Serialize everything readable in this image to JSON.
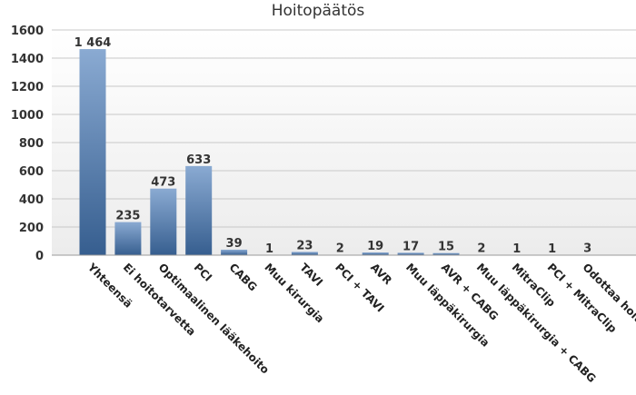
{
  "chart_data": {
    "type": "bar",
    "title": "Hoitopäätös",
    "xlabel": "",
    "ylabel": "",
    "ylim": [
      0,
      1600
    ],
    "yticks": [
      0,
      200,
      400,
      600,
      800,
      1000,
      1200,
      1400,
      1600
    ],
    "grid": true,
    "legend": "none",
    "categories": [
      "Yhteensä",
      "Ei hoitotarvetta",
      "Optimaalinen lääkehoito",
      "PCI",
      "CABG",
      "Muu kirurgia",
      "TAVI",
      "PCI + TAVI",
      "AVR",
      "Muu läppäkirurgia",
      "AVR + CABG",
      "Muu läppäkirurgia + CABG",
      "MitraClip",
      "PCI + MitraClip",
      "Odottaa hoitopäätöstä"
    ],
    "values": [
      1464,
      235,
      473,
      633,
      39,
      1,
      23,
      2,
      19,
      17,
      15,
      2,
      1,
      1,
      3
    ],
    "data_labels": [
      "1 464",
      "235",
      "473",
      "633",
      "39",
      "1",
      "23",
      "2",
      "19",
      "17",
      "15",
      "2",
      "1",
      "1",
      "3"
    ],
    "colors": {
      "bar_top": "#8aaad2",
      "bar_bottom": "#365e8f",
      "grid": "#c8c8c8",
      "plot_bg": "#f4f4f4"
    }
  }
}
